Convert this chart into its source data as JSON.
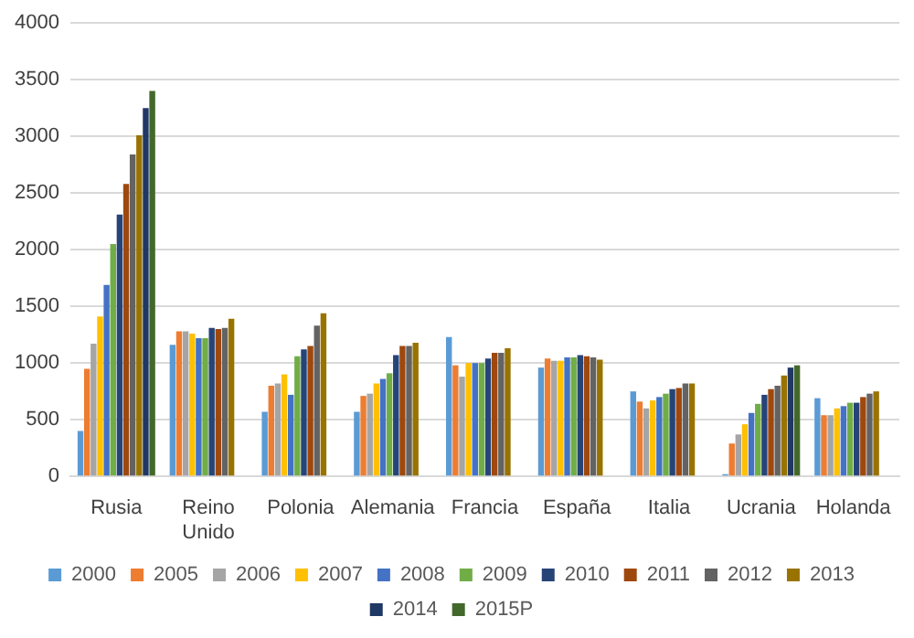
{
  "chart_data": {
    "type": "bar",
    "categories": [
      "Rusia",
      "Reino Unido",
      "Polonia",
      "Alemania",
      "Francia",
      "España",
      "Italia",
      "Ucrania",
      "Holanda"
    ],
    "ylim": [
      0,
      4000
    ],
    "yticks": [
      0,
      500,
      1000,
      1500,
      2000,
      2500,
      3000,
      3500,
      4000
    ],
    "grid": "y",
    "legend": "bottom",
    "series": [
      {
        "name": "2000",
        "color": "#5b9bd5",
        "values": [
          400,
          1160,
          570,
          570,
          1230,
          960,
          750,
          20,
          690
        ]
      },
      {
        "name": "2005",
        "color": "#ed7d31",
        "values": [
          950,
          1280,
          800,
          710,
          980,
          1040,
          660,
          290,
          540
        ]
      },
      {
        "name": "2006",
        "color": "#a5a5a5",
        "values": [
          1170,
          1280,
          820,
          730,
          880,
          1020,
          600,
          370,
          540
        ]
      },
      {
        "name": "2007",
        "color": "#ffc000",
        "values": [
          1410,
          1260,
          900,
          820,
          1000,
          1020,
          670,
          460,
          600
        ]
      },
      {
        "name": "2008",
        "color": "#4472c4",
        "values": [
          1690,
          1220,
          720,
          860,
          1000,
          1050,
          700,
          560,
          620
        ]
      },
      {
        "name": "2009",
        "color": "#70ad47",
        "values": [
          2050,
          1220,
          1060,
          910,
          1000,
          1050,
          730,
          640,
          650
        ]
      },
      {
        "name": "2010",
        "color": "#264478",
        "values": [
          2310,
          1310,
          1120,
          1070,
          1040,
          1070,
          770,
          720,
          650
        ]
      },
      {
        "name": "2011",
        "color": "#9e480e",
        "values": [
          2580,
          1300,
          1150,
          1150,
          1090,
          1060,
          780,
          770,
          700
        ]
      },
      {
        "name": "2012",
        "color": "#636363",
        "values": [
          2840,
          1310,
          1330,
          1150,
          1090,
          1050,
          820,
          800,
          730
        ]
      },
      {
        "name": "2013",
        "color": "#997300",
        "values": [
          3010,
          1390,
          1440,
          1180,
          1130,
          1030,
          820,
          890,
          750
        ]
      },
      {
        "name": "2014",
        "color": "#203864",
        "values": [
          3250,
          null,
          null,
          null,
          null,
          null,
          null,
          960,
          null
        ]
      },
      {
        "name": "2015P",
        "color": "#43682b",
        "values": [
          3400,
          null,
          null,
          null,
          null,
          null,
          null,
          980,
          null
        ]
      }
    ]
  }
}
